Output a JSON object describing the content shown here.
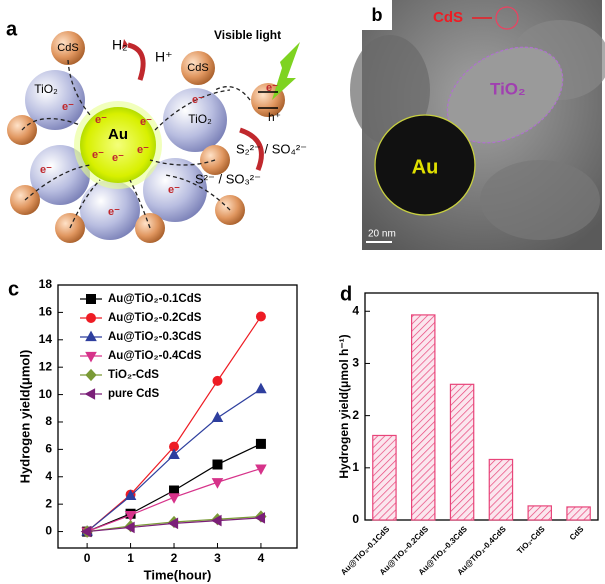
{
  "panel_a": {
    "label": "a",
    "cds": "CdS",
    "tio2": "TiO₂",
    "au": "Au",
    "electron": "e⁻",
    "hole": "h⁺",
    "h2": "H₂",
    "hplus": "H⁺",
    "light": "Visible light",
    "products": "S₂²⁻ / SO₄²⁻",
    "reactants": "S²⁻ / SO₃²⁻"
  },
  "panel_b": {
    "label": "b",
    "cds": "CdS",
    "tio2": "TiO₂",
    "au": "Au",
    "scale": "20 nm"
  },
  "chart_data": [
    {
      "type": "line",
      "panel_label": "c",
      "xlabel": "Time(hour)",
      "ylabel": "Hydrogen yield(μmol)",
      "x": [
        0,
        1,
        2,
        3,
        4
      ],
      "xlim": [
        -0.67,
        4.83
      ],
      "xticks": [
        0,
        1,
        2,
        3,
        4
      ],
      "ylim": [
        -1.2,
        18
      ],
      "yticks": [
        0,
        2,
        4,
        6,
        8,
        10,
        12,
        14,
        16,
        18
      ],
      "legend": "upper-left",
      "series": [
        {
          "name": "Au@TiO₂-0.1CdS",
          "color": "#000000",
          "marker": "square",
          "values": [
            0,
            1.3,
            3.0,
            4.9,
            6.4
          ]
        },
        {
          "name": "Au@TiO₂-0.2CdS",
          "color": "#ee1c24",
          "marker": "circle",
          "values": [
            0,
            2.7,
            6.2,
            11.0,
            15.7
          ]
        },
        {
          "name": "Au@TiO₂-0.3CdS",
          "color": "#2e3f9e",
          "marker": "triangle-up",
          "values": [
            0,
            2.6,
            5.6,
            8.3,
            10.4
          ]
        },
        {
          "name": "Au@TiO₂-0.4CdS",
          "color": "#d6338a",
          "marker": "triangle-down",
          "values": [
            0,
            1.2,
            2.5,
            3.6,
            4.6
          ]
        },
        {
          "name": "TiO₂-CdS",
          "color": "#7a9a36",
          "marker": "diamond",
          "values": [
            0,
            0.4,
            0.7,
            0.9,
            1.1
          ]
        },
        {
          "name": "pure CdS",
          "color": "#7b1f78",
          "marker": "triangle-left",
          "values": [
            0,
            0.3,
            0.6,
            0.8,
            1.0
          ]
        }
      ]
    },
    {
      "type": "bar",
      "panel_label": "d",
      "ylabel": "Hydrogen yield(μmol h⁻¹)",
      "categories": [
        "Au@TiO₂-0.1CdS",
        "Au@TiO₂-0.2CdS",
        "Au@TiO₂-0.3CdS",
        "Au@TiO₂-0.4CdS",
        "TiO₂-CdS",
        "CdS"
      ],
      "values": [
        1.62,
        3.93,
        2.6,
        1.16,
        0.27,
        0.25
      ],
      "color": "#e8457a",
      "ylim": [
        0,
        4.35
      ],
      "yticks": [
        0,
        1,
        2,
        3,
        4
      ]
    }
  ]
}
